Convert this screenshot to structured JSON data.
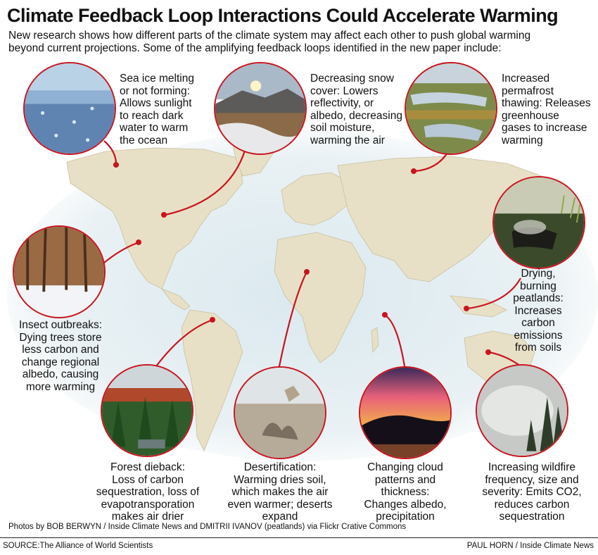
{
  "title": "Climate Feedback Loop Interactions Could Accelerate Warming",
  "intro": [
    "New research shows how different parts of the climate system may affect each other to push global warming",
    "beyond current projections. Some of the amplifying feedback loops identified in the new paper include:"
  ],
  "colors": {
    "accent": "#c8141e",
    "ocean": "#e6f0f4",
    "land": "#e9e2c9"
  },
  "captions": {
    "sea_ice": [
      "Sea ice melting",
      "or not forming:",
      "Allows sunlight",
      "to reach dark",
      "water to warm",
      "the ocean"
    ],
    "snow": [
      "Decreasing snow",
      "cover: Lowers",
      "reflectivity, or",
      "albedo, decreasing",
      "soil moisture,",
      "warming the air"
    ],
    "permafrost": [
      "Increased",
      "permafrost",
      "thawing: Releases",
      "greenhouse",
      "gases to increase",
      "warming"
    ],
    "insect": [
      "Insect outbreaks:",
      "Dying trees store",
      "less carbon and",
      "change regional",
      "albedo, causing",
      "more warming"
    ],
    "peatlands": [
      "Drying,",
      "burning",
      "peatlands:",
      "Increases",
      "carbon",
      "emissions",
      "from soils"
    ],
    "forest": [
      "Forest dieback:",
      "Loss of carbon",
      "sequestration, loss of",
      "evapotransporation",
      "makes air drier"
    ],
    "desert": [
      "Desertification:",
      "Warming dries soil,",
      "which makes the air",
      "even warmer; deserts",
      "expand"
    ],
    "cloud": [
      "Changing cloud",
      "patterns and",
      "thickness:",
      "Changes albedo,",
      "precipitation"
    ],
    "wildfire": [
      "Increasing wildfire",
      "frequency, size and",
      "severity: Emits CO2,",
      "reduces carbon",
      "sequestration"
    ]
  },
  "credit": "Photos by BOB BERWYN / Inside Climate News and DMITRII IVANOV (peatlands) via Flickr Crative Commons",
  "source": "SOURCE:The Alliance of World Scientists",
  "byline": "PAUL HORN / Inside Climate News"
}
